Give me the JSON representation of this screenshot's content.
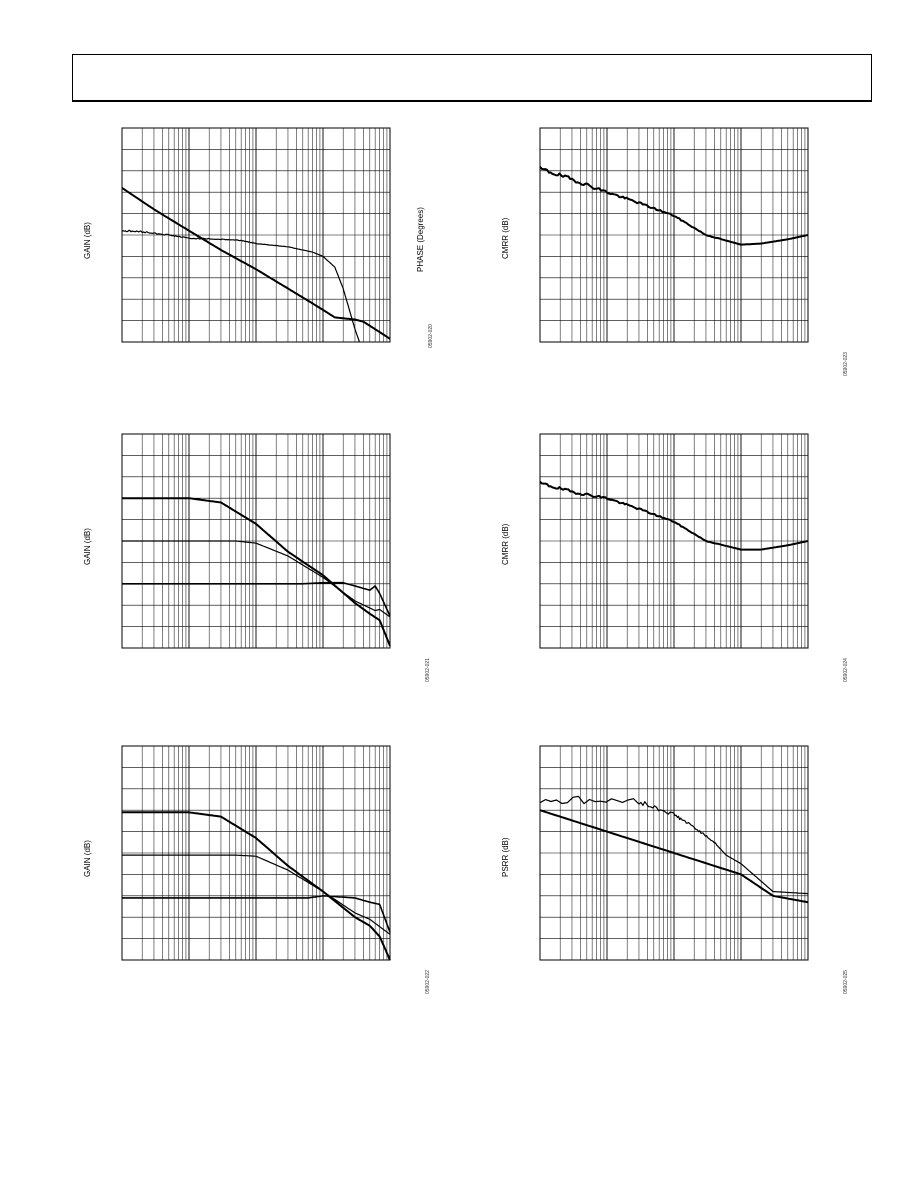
{
  "header": {
    "text": ""
  },
  "chart_data": [
    {
      "id": "c1",
      "type": "line",
      "ylabel": "GAIN (dB)",
      "y2label": "PHASE (Degrees)",
      "figure_code": "05902-020",
      "xscale": "log",
      "xlim": [
        1,
        10000
      ],
      "ylim": [
        0,
        10
      ],
      "grid": true,
      "series": [
        {
          "values": [
            [
              1,
              7.2
            ],
            [
              3,
              6.2
            ],
            [
              10,
              5.2
            ],
            [
              30,
              4.3
            ],
            [
              100,
              3.4
            ],
            [
              300,
              2.5
            ],
            [
              700,
              1.8
            ],
            [
              1000,
              1.5
            ],
            [
              1500,
              1.15
            ],
            [
              3000,
              1.05
            ],
            [
              4000,
              0.95
            ],
            [
              6000,
              0.6
            ],
            [
              10000,
              0.15
            ]
          ],
          "noise": 0
        },
        {
          "values": [
            [
              1,
              5.2
            ],
            [
              2,
              5.15
            ],
            [
              5,
              5
            ],
            [
              10,
              4.85
            ],
            [
              30,
              4.8
            ],
            [
              60,
              4.75
            ],
            [
              100,
              4.6
            ],
            [
              300,
              4.45
            ],
            [
              700,
              4.2
            ],
            [
              1000,
              4.0
            ],
            [
              1500,
              3.5
            ],
            [
              2000,
              2.5
            ],
            [
              3000,
              0.6
            ],
            [
              3500,
              0
            ]
          ],
          "noise": 0.04
        }
      ]
    },
    {
      "id": "c2",
      "type": "line",
      "ylabel": "CMRR (dB)",
      "figure_code": "05902-023",
      "xscale": "log",
      "xlim": [
        1,
        10000
      ],
      "ylim": [
        0,
        10
      ],
      "grid": true,
      "series": [
        {
          "values": [
            [
              1,
              8.1
            ],
            [
              3,
              7.6
            ],
            [
              10,
              7.0
            ],
            [
              30,
              6.5
            ],
            [
              100,
              5.9
            ],
            [
              300,
              5.0
            ],
            [
              1000,
              4.55
            ],
            [
              2000,
              4.6
            ],
            [
              5000,
              4.8
            ],
            [
              10000,
              5.0
            ]
          ],
          "noise": 0.1
        }
      ]
    },
    {
      "id": "c3",
      "type": "line",
      "ylabel": "GAIN (dB)",
      "figure_code": "05902-021",
      "xscale": "log",
      "xlim": [
        1,
        10000
      ],
      "ylim": [
        0,
        10
      ],
      "grid": true,
      "series": [
        {
          "values": [
            [
              1,
              7.0
            ],
            [
              10,
              7.0
            ],
            [
              30,
              6.8
            ],
            [
              100,
              5.8
            ],
            [
              300,
              4.5
            ],
            [
              1000,
              3.4
            ],
            [
              3000,
              2.1
            ],
            [
              5000,
              1.6
            ],
            [
              7000,
              1.3
            ],
            [
              10000,
              0.1
            ]
          ],
          "noise": 0
        },
        {
          "values": [
            [
              1,
              5.0
            ],
            [
              50,
              5.0
            ],
            [
              100,
              4.9
            ],
            [
              300,
              4.3
            ],
            [
              1000,
              3.3
            ],
            [
              2000,
              2.6
            ],
            [
              3000,
              2.2
            ],
            [
              6000,
              1.75
            ],
            [
              7000,
              1.8
            ],
            [
              10000,
              1.45
            ]
          ],
          "noise": 0
        },
        {
          "values": [
            [
              1,
              3.0
            ],
            [
              500,
              3.0
            ],
            [
              1000,
              3.05
            ],
            [
              2000,
              3.05
            ],
            [
              3000,
              2.9
            ],
            [
              5000,
              2.7
            ],
            [
              6000,
              2.9
            ],
            [
              7000,
              2.55
            ],
            [
              10000,
              1.5
            ]
          ],
          "noise": 0
        }
      ]
    },
    {
      "id": "c4",
      "type": "line",
      "ylabel": "CMRR (dB)",
      "figure_code": "05902-024",
      "xscale": "log",
      "xlim": [
        1,
        10000
      ],
      "ylim": [
        0,
        10
      ],
      "grid": true,
      "series": [
        {
          "values": [
            [
              1,
              7.7
            ],
            [
              3,
              7.3
            ],
            [
              10,
              7.0
            ],
            [
              30,
              6.5
            ],
            [
              100,
              5.9
            ],
            [
              300,
              5.0
            ],
            [
              1000,
              4.6
            ],
            [
              2000,
              4.6
            ],
            [
              5000,
              4.8
            ],
            [
              10000,
              5.0
            ]
          ],
          "noise": 0.08
        }
      ]
    },
    {
      "id": "c5",
      "type": "line",
      "ylabel": "GAIN (dB)",
      "figure_code": "05902-022",
      "xscale": "log",
      "xlim": [
        1,
        10000
      ],
      "ylim": [
        0,
        10
      ],
      "grid": true,
      "series": [
        {
          "values": [
            [
              1,
              6.9
            ],
            [
              10,
              6.9
            ],
            [
              30,
              6.7
            ],
            [
              100,
              5.7
            ],
            [
              300,
              4.4
            ],
            [
              1000,
              3.2
            ],
            [
              3000,
              2.0
            ],
            [
              5000,
              1.6
            ],
            [
              7000,
              1.1
            ],
            [
              10000,
              0.0
            ]
          ],
          "noise": 0
        },
        {
          "values": [
            [
              1,
              4.9
            ],
            [
              50,
              4.9
            ],
            [
              100,
              4.85
            ],
            [
              300,
              4.2
            ],
            [
              1000,
              3.2
            ],
            [
              3000,
              2.2
            ],
            [
              5000,
              1.9
            ],
            [
              10000,
              1.2
            ]
          ],
          "noise": 0
        },
        {
          "values": [
            [
              1,
              2.9
            ],
            [
              600,
              2.9
            ],
            [
              1000,
              3.0
            ],
            [
              3000,
              2.9
            ],
            [
              5000,
              2.7
            ],
            [
              7000,
              2.6
            ],
            [
              10000,
              1.3
            ]
          ],
          "noise": 0
        }
      ]
    },
    {
      "id": "c6",
      "type": "line",
      "ylabel": "PSRR (dB)",
      "figure_code": "05902-025",
      "xscale": "log",
      "xlim": [
        1,
        10000
      ],
      "ylim": [
        0,
        10
      ],
      "grid": true,
      "series": [
        {
          "values": [
            [
              1,
              7.0
            ],
            [
              10,
              6.0
            ],
            [
              100,
              5.0
            ],
            [
              1000,
              4.0
            ],
            [
              3000,
              3.0
            ],
            [
              10000,
              2.7
            ]
          ],
          "noise": 0
        },
        {
          "values": [
            [
              1,
              7.5
            ],
            [
              30,
              7.4
            ],
            [
              100,
              6.8
            ],
            [
              200,
              6.2
            ],
            [
              400,
              5.5
            ],
            [
              600,
              4.9
            ],
            [
              1000,
              4.5
            ],
            [
              3000,
              3.2
            ],
            [
              10000,
              3.1
            ]
          ],
          "noise": 0.25
        }
      ]
    }
  ]
}
